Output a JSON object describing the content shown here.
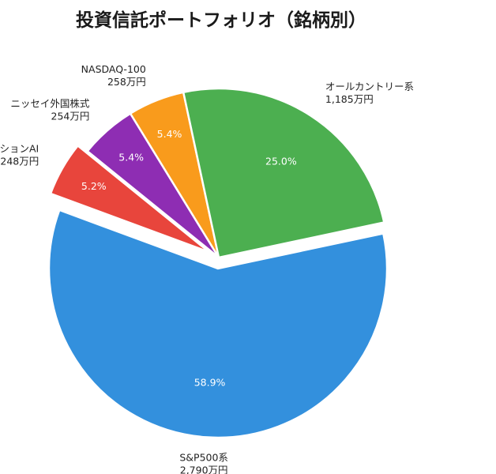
{
  "chart_data": {
    "type": "pie",
    "title": "投資信託ポートフォリオ（銘柄別）",
    "slices": [
      {
        "name": "S&P500系",
        "amount_label": "2,790万円",
        "pct": 58.9,
        "pct_label": "58.9%",
        "color": "#3390dd",
        "exploded": true
      },
      {
        "name": "イノベーションAI",
        "amount_label": "248万円",
        "pct": 5.2,
        "pct_label": "5.2%",
        "color": "#e8453c",
        "exploded": true
      },
      {
        "name": "ニッセイ外国株式",
        "amount_label": "254万円",
        "pct": 5.4,
        "pct_label": "5.4%",
        "color": "#8e2db3",
        "exploded": false
      },
      {
        "name": "NASDAQ-100",
        "amount_label": "258万円",
        "pct": 5.4,
        "pct_label": "5.4%",
        "color": "#f99b1c",
        "exploded": false
      },
      {
        "name": "オールカントリー系",
        "amount_label": "1,185万円",
        "pct": 25.0,
        "pct_label": "25.0%",
        "color": "#4caf50",
        "exploded": false
      }
    ]
  }
}
